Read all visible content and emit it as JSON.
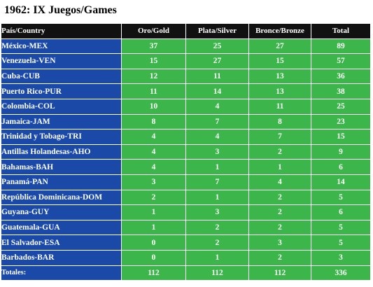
{
  "title": "1962: IX Juegos/Games",
  "header": {
    "country": "País/Country",
    "gold": "Oro/Gold",
    "silver": "Plata/Silver",
    "bronze": "Bronce/Bronze",
    "total": "Total"
  },
  "rows": [
    {
      "country": "México-MEX",
      "gold": "37",
      "silver": "25",
      "bronze": "27",
      "total": "89"
    },
    {
      "country": "Venezuela-VEN",
      "gold": "15",
      "silver": "27",
      "bronze": "15",
      "total": "57"
    },
    {
      "country": "Cuba-CUB",
      "gold": "12",
      "silver": "11",
      "bronze": "13",
      "total": "36"
    },
    {
      "country": "Puerto Rico-PUR",
      "gold": "11",
      "silver": "14",
      "bronze": "13",
      "total": "38"
    },
    {
      "country": "Colombia-COL",
      "gold": "10",
      "silver": "4",
      "bronze": "11",
      "total": "25"
    },
    {
      "country": "Jamaica-JAM",
      "gold": "8",
      "silver": "7",
      "bronze": "8",
      "total": "23"
    },
    {
      "country": "Trinidad y Tobago-TRI",
      "gold": "4",
      "silver": "4",
      "bronze": "7",
      "total": "15"
    },
    {
      "country": "Antillas Holandesas-AHO",
      "gold": "4",
      "silver": "3",
      "bronze": "2",
      "total": "9"
    },
    {
      "country": "Bahamas-BAH",
      "gold": "4",
      "silver": "1",
      "bronze": "1",
      "total": "6"
    },
    {
      "country": "Panamá-PAN",
      "gold": "3",
      "silver": "7",
      "bronze": "4",
      "total": "14"
    },
    {
      "country": "República Dominicana-DOM",
      "gold": "2",
      "silver": "1",
      "bronze": "2",
      "total": "5"
    },
    {
      "country": "Guyana-GUY",
      "gold": "1",
      "silver": "3",
      "bronze": "2",
      "total": "6"
    },
    {
      "country": "Guatemala-GUA",
      "gold": "1",
      "silver": "2",
      "bronze": "2",
      "total": "5"
    },
    {
      "country": "El Salvador-ESA",
      "gold": "0",
      "silver": "2",
      "bronze": "3",
      "total": "5"
    },
    {
      "country": "Barbados-BAR",
      "gold": "0",
      "silver": "1",
      "bronze": "2",
      "total": "3"
    }
  ],
  "totals": {
    "label": "Totales:",
    "gold": "112",
    "silver": "112",
    "bronze": "112",
    "total": "336"
  },
  "colors": {
    "header": "#111111",
    "country_cell": "#1a49a8",
    "value_cell": "#3cb54a",
    "text": "#ffffff"
  }
}
